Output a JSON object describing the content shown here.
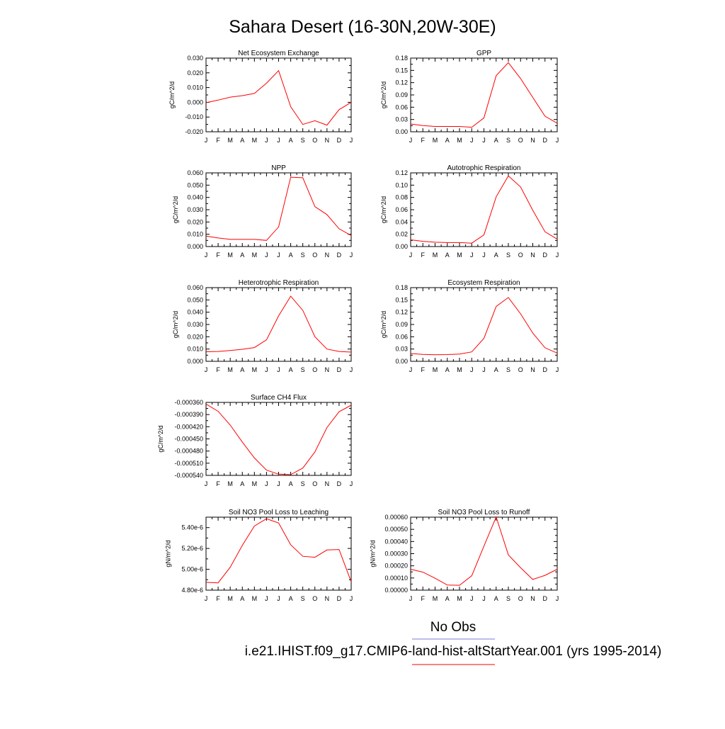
{
  "figure": {
    "title": "Sahara Desert (16-30N,20W-30E)",
    "legend": [
      {
        "label": "No Obs",
        "color": "#7b7bd6"
      },
      {
        "label": "i.e21.IHIST.f09_g17.CMIP6-land-hist-altStartYear.001 (yrs 1995-2014)",
        "color": "#ff0000"
      }
    ],
    "line_color": "#ff0000"
  },
  "chart_data": [
    {
      "type": "line",
      "title": "Net Ecosystem Exchange",
      "ylabel": "gC/m^2/d",
      "categories": [
        "J",
        "F",
        "M",
        "A",
        "M",
        "J",
        "J",
        "A",
        "S",
        "O",
        "N",
        "D",
        "J"
      ],
      "ylim": [
        -0.02,
        0.03
      ],
      "yticks": [
        -0.02,
        -0.01,
        0.0,
        0.01,
        0.02,
        0.03
      ],
      "ytick_labels": [
        "-0.020",
        "-0.010",
        "0.000",
        "0.010",
        "0.020",
        "0.030"
      ],
      "values": [
        -0.0003,
        0.0015,
        0.0035,
        0.0045,
        0.006,
        0.013,
        0.0215,
        -0.003,
        -0.015,
        -0.0125,
        -0.0155,
        -0.005,
        0.0
      ]
    },
    {
      "type": "line",
      "title": "GPP",
      "ylabel": "gC/m^2/d",
      "categories": [
        "J",
        "F",
        "M",
        "A",
        "M",
        "J",
        "J",
        "A",
        "S",
        "O",
        "N",
        "D",
        "J"
      ],
      "ylim": [
        0.0,
        0.18
      ],
      "yticks": [
        0.0,
        0.03,
        0.06,
        0.09,
        0.12,
        0.15,
        0.18
      ],
      "ytick_labels": [
        "0.00",
        "0.03",
        "0.06",
        "0.09",
        "0.12",
        "0.15",
        "0.18"
      ],
      "values": [
        0.019,
        0.015,
        0.013,
        0.013,
        0.013,
        0.011,
        0.034,
        0.137,
        0.169,
        0.13,
        0.084,
        0.038,
        0.021
      ]
    },
    {
      "type": "line",
      "title": "NPP",
      "ylabel": "gC/m^2/d",
      "categories": [
        "J",
        "F",
        "M",
        "A",
        "M",
        "J",
        "J",
        "A",
        "S",
        "O",
        "N",
        "D",
        "J"
      ],
      "ylim": [
        0.0,
        0.06
      ],
      "yticks": [
        0.0,
        0.01,
        0.02,
        0.03,
        0.04,
        0.05,
        0.06
      ],
      "ytick_labels": [
        "0.000",
        "0.010",
        "0.020",
        "0.030",
        "0.040",
        "0.050",
        "0.060"
      ],
      "values": [
        0.0085,
        0.007,
        0.0058,
        0.0058,
        0.0058,
        0.005,
        0.016,
        0.0565,
        0.056,
        0.0325,
        0.026,
        0.0145,
        0.009
      ]
    },
    {
      "type": "line",
      "title": "Autotrophic Respiration",
      "ylabel": "gC/m^2/d",
      "categories": [
        "J",
        "F",
        "M",
        "A",
        "M",
        "J",
        "J",
        "A",
        "S",
        "O",
        "N",
        "D",
        "J"
      ],
      "ylim": [
        0.0,
        0.12
      ],
      "yticks": [
        0.0,
        0.02,
        0.04,
        0.06,
        0.08,
        0.1,
        0.12
      ],
      "ytick_labels": [
        "0.00",
        "0.02",
        "0.04",
        "0.06",
        "0.08",
        "0.10",
        "0.12"
      ],
      "values": [
        0.011,
        0.0085,
        0.007,
        0.0065,
        0.0065,
        0.0055,
        0.019,
        0.081,
        0.115,
        0.097,
        0.059,
        0.024,
        0.012
      ]
    },
    {
      "type": "line",
      "title": "Heterotrophic Respiration",
      "ylabel": "gC/m^2/d",
      "categories": [
        "J",
        "F",
        "M",
        "A",
        "M",
        "J",
        "J",
        "A",
        "S",
        "O",
        "N",
        "D",
        "J"
      ],
      "ylim": [
        0.0,
        0.06
      ],
      "yticks": [
        0.0,
        0.01,
        0.02,
        0.03,
        0.04,
        0.05,
        0.06
      ],
      "ytick_labels": [
        "0.000",
        "0.010",
        "0.020",
        "0.030",
        "0.040",
        "0.050",
        "0.060"
      ],
      "values": [
        0.0078,
        0.008,
        0.0088,
        0.0098,
        0.0112,
        0.0175,
        0.037,
        0.053,
        0.0415,
        0.02,
        0.01,
        0.008,
        0.0075
      ]
    },
    {
      "type": "line",
      "title": "Ecosystem Respiration",
      "ylabel": "gC/m^2/d",
      "categories": [
        "J",
        "F",
        "M",
        "A",
        "M",
        "J",
        "J",
        "A",
        "S",
        "O",
        "N",
        "D",
        "J"
      ],
      "ylim": [
        0.0,
        0.18
      ],
      "yticks": [
        0.0,
        0.03,
        0.06,
        0.09,
        0.12,
        0.15,
        0.18
      ],
      "ytick_labels": [
        "0.00",
        "0.03",
        "0.06",
        "0.09",
        "0.12",
        "0.15",
        "0.18"
      ],
      "values": [
        0.019,
        0.017,
        0.016,
        0.0165,
        0.0178,
        0.023,
        0.056,
        0.134,
        0.156,
        0.116,
        0.069,
        0.033,
        0.02
      ]
    },
    {
      "type": "line",
      "title": "Surface CH4 Flux",
      "ylabel": "gC/m^2/d",
      "categories": [
        "J",
        "F",
        "M",
        "A",
        "M",
        "J",
        "J",
        "A",
        "S",
        "O",
        "N",
        "D",
        "J"
      ],
      "ylim": [
        -0.00054,
        -0.00036
      ],
      "yticks": [
        -0.00054,
        -0.00051,
        -0.00048,
        -0.00045,
        -0.00042,
        -0.00039,
        -0.00036
      ],
      "ytick_labels": [
        "-0.000540",
        "-0.000510",
        "-0.000480",
        "-0.000450",
        "-0.000420",
        "-0.000390",
        "-0.000360"
      ],
      "values": [
        -0.000364,
        -0.000382,
        -0.000416,
        -0.000458,
        -0.000497,
        -0.000527,
        -0.000537,
        -0.000538,
        -0.000522,
        -0.000482,
        -0.000422,
        -0.000383,
        -0.000367
      ]
    },
    {
      "type": "line",
      "title": "Soil NO3 Pool Loss to Leaching",
      "ylabel": "gN/m^2/d",
      "categories": [
        "J",
        "F",
        "M",
        "A",
        "M",
        "J",
        "J",
        "A",
        "S",
        "O",
        "N",
        "D",
        "J"
      ],
      "ylim": [
        4.8e-06,
        5.5e-06
      ],
      "yticks": [
        4.8e-06,
        5e-06,
        5.2e-06,
        5.4e-06
      ],
      "ytick_labels": [
        "4.80e-6",
        "5.00e-6",
        "5.20e-6",
        "5.40e-6"
      ],
      "values": [
        4.875e-06,
        4.87e-06,
        5.02e-06,
        5.23e-06,
        5.415e-06,
        5.485e-06,
        5.445e-06,
        5.235e-06,
        5.125e-06,
        5.115e-06,
        5.185e-06,
        5.19e-06,
        4.88e-06
      ]
    },
    {
      "type": "line",
      "title": "Soil NO3 Pool Loss to Runoff",
      "ylabel": "gN/m^2/d",
      "categories": [
        "J",
        "F",
        "M",
        "A",
        "M",
        "J",
        "J",
        "A",
        "S",
        "O",
        "N",
        "D",
        "J"
      ],
      "ylim": [
        0.0,
        0.0006
      ],
      "yticks": [
        0.0,
        0.0001,
        0.0002,
        0.0003,
        0.0004,
        0.0005,
        0.0006
      ],
      "ytick_labels": [
        "0.00000",
        "0.00010",
        "0.00020",
        "0.00030",
        "0.00040",
        "0.00050",
        "0.00060"
      ],
      "values": [
        0.000172,
        0.000148,
        9.8e-05,
        4.2e-05,
        4e-05,
        0.000118,
        0.000362,
        0.000602,
        0.00029,
        0.000184,
        8.8e-05,
        0.000122,
        0.000172
      ]
    }
  ]
}
